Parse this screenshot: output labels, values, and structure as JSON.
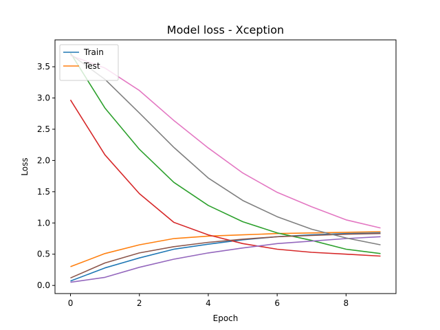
{
  "chart_data": {
    "type": "line",
    "title": "Model loss - Xception",
    "xlabel": "Epoch",
    "ylabel": "Loss",
    "xlim": [
      -0.45,
      9.45
    ],
    "ylim": [
      -0.13,
      3.93
    ],
    "xticks": [
      0,
      2,
      4,
      6,
      8
    ],
    "xtick_labels": [
      "0",
      "2",
      "4",
      "6",
      "8"
    ],
    "yticks": [
      0.0,
      0.5,
      1.0,
      1.5,
      2.0,
      2.5,
      3.0,
      3.5
    ],
    "ytick_labels": [
      "0.0",
      "0.5",
      "1.0",
      "1.5",
      "2.0",
      "2.5",
      "3.0",
      "3.5"
    ],
    "grid": false,
    "legend": {
      "position": "top-left",
      "entries": [
        "Train",
        "Test"
      ]
    },
    "x": [
      0,
      1,
      2,
      3,
      4,
      5,
      6,
      7,
      8,
      9
    ],
    "series": [
      {
        "name": "Train",
        "color": "#1f77b4",
        "values": [
          0.07,
          0.28,
          0.44,
          0.58,
          0.66,
          0.73,
          0.78,
          0.81,
          0.83,
          0.84
        ]
      },
      {
        "name": "Test",
        "color": "#ff7f0e",
        "values": [
          0.3,
          0.51,
          0.65,
          0.75,
          0.79,
          0.81,
          0.83,
          0.84,
          0.85,
          0.86
        ]
      },
      {
        "color": "#2ca02c",
        "values": [
          3.72,
          2.84,
          2.18,
          1.65,
          1.28,
          1.02,
          0.84,
          0.72,
          0.58,
          0.51
        ]
      },
      {
        "color": "#d62728",
        "values": [
          2.97,
          2.09,
          1.47,
          1.01,
          0.81,
          0.67,
          0.58,
          0.53,
          0.5,
          0.47
        ]
      },
      {
        "color": "#9467bd",
        "values": [
          0.05,
          0.13,
          0.29,
          0.42,
          0.52,
          0.6,
          0.67,
          0.71,
          0.75,
          0.78
        ]
      },
      {
        "color": "#8c564b",
        "values": [
          0.12,
          0.36,
          0.52,
          0.62,
          0.69,
          0.74,
          0.78,
          0.8,
          0.82,
          0.83
        ]
      },
      {
        "color": "#e377c2",
        "values": [
          3.68,
          3.48,
          3.12,
          2.64,
          2.2,
          1.8,
          1.49,
          1.26,
          1.05,
          0.92
        ]
      },
      {
        "color": "#7f7f7f",
        "values": [
          3.7,
          3.3,
          2.76,
          2.21,
          1.72,
          1.36,
          1.1,
          0.9,
          0.76,
          0.65
        ]
      }
    ]
  }
}
